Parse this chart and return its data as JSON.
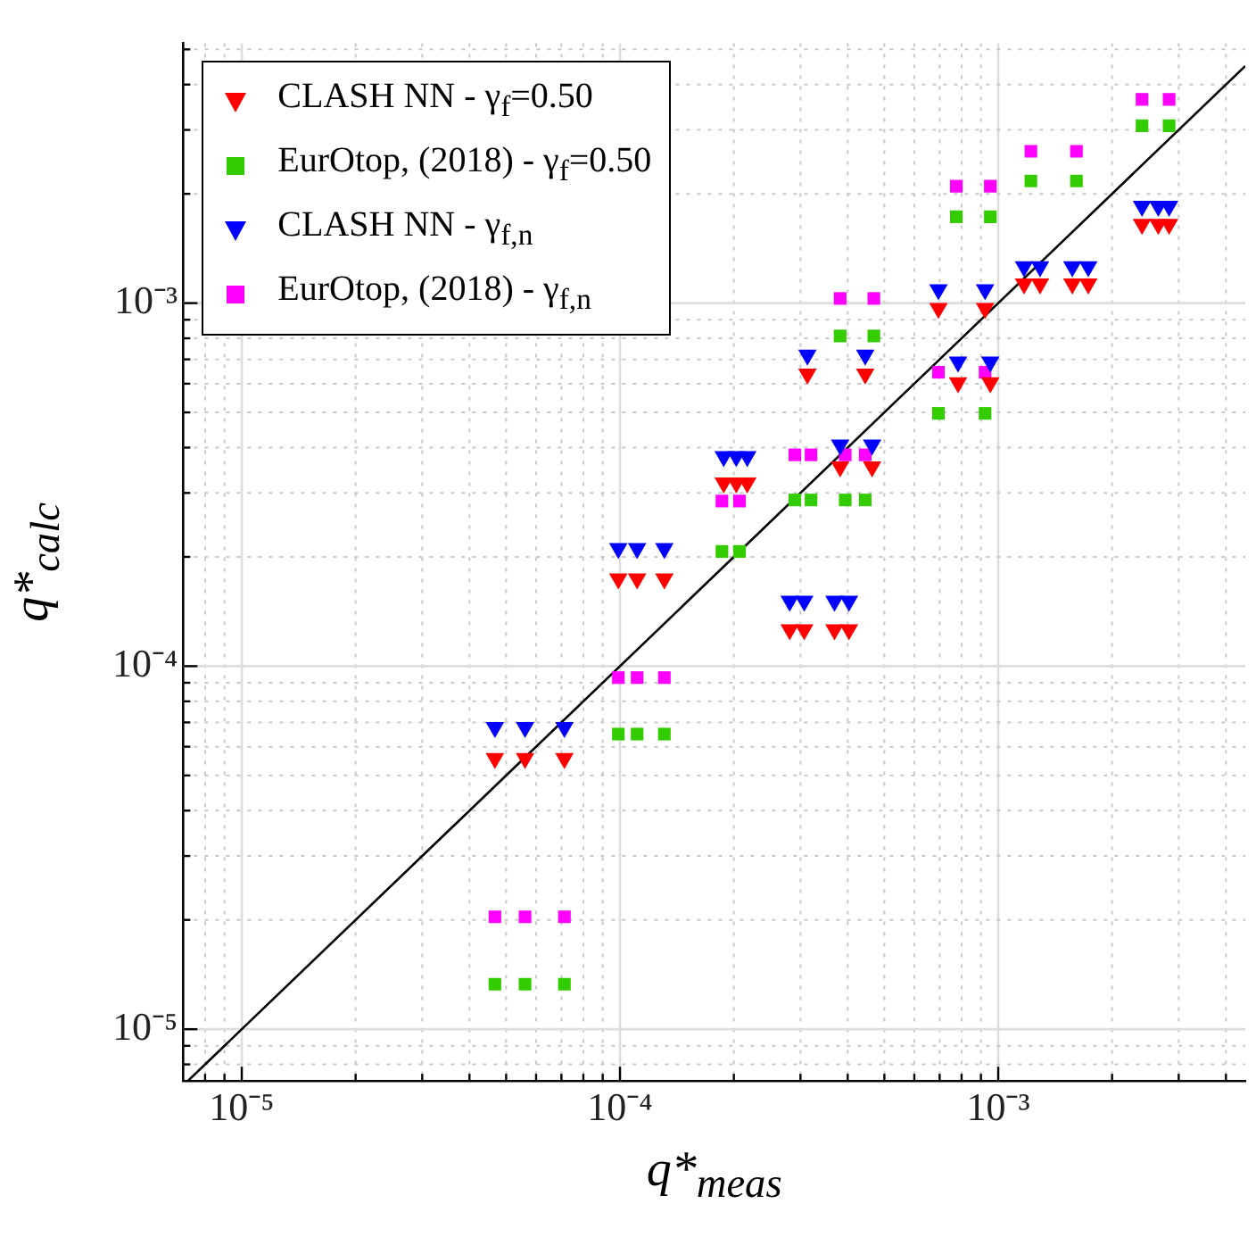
{
  "chart_data": {
    "type": "scatter",
    "xlabel": "q*$_{meas}$",
    "ylabel": "q*$_{calc}$",
    "log": "xy",
    "grid": true,
    "legend": "top left",
    "xlim": [
      7e-06,
      0.0045
    ],
    "ylim": [
      7.2e-06,
      0.0052
    ],
    "xticks": [
      {
        "value": 8e-06,
        "label": null
      },
      {
        "value": 9e-06,
        "label": null
      },
      {
        "value": 1e-05,
        "label": "10⁻⁵"
      },
      {
        "value": 2e-05,
        "label": null
      },
      {
        "value": 3e-05,
        "label": null
      },
      {
        "value": 4e-05,
        "label": null
      },
      {
        "value": 5e-05,
        "label": null
      },
      {
        "value": 6e-05,
        "label": null
      },
      {
        "value": 7e-05,
        "label": null
      },
      {
        "value": 8e-05,
        "label": null
      },
      {
        "value": 9e-05,
        "label": null
      },
      {
        "value": 0.0001,
        "label": "10⁻⁴"
      },
      {
        "value": 0.0002,
        "label": null
      },
      {
        "value": 0.0003,
        "label": null
      },
      {
        "value": 0.0004,
        "label": null
      },
      {
        "value": 0.0005,
        "label": null
      },
      {
        "value": 0.0006,
        "label": null
      },
      {
        "value": 0.0007,
        "label": null
      },
      {
        "value": 0.0008,
        "label": null
      },
      {
        "value": 0.0009,
        "label": null
      },
      {
        "value": 0.001,
        "label": "10⁻³"
      },
      {
        "value": 0.002,
        "label": null
      },
      {
        "value": 0.003,
        "label": null
      },
      {
        "value": 0.004,
        "label": null
      }
    ],
    "yticks": [
      {
        "value": 8e-06,
        "label": null
      },
      {
        "value": 9e-06,
        "label": null
      },
      {
        "value": 1e-05,
        "label": "10⁻⁵"
      },
      {
        "value": 2e-05,
        "label": null
      },
      {
        "value": 3e-05,
        "label": null
      },
      {
        "value": 4e-05,
        "label": null
      },
      {
        "value": 5e-05,
        "label": null
      },
      {
        "value": 6e-05,
        "label": null
      },
      {
        "value": 7e-05,
        "label": null
      },
      {
        "value": 8e-05,
        "label": null
      },
      {
        "value": 9e-05,
        "label": null
      },
      {
        "value": 0.0001,
        "label": "10⁻⁴"
      },
      {
        "value": 0.0002,
        "label": null
      },
      {
        "value": 0.0003,
        "label": null
      },
      {
        "value": 0.0004,
        "label": null
      },
      {
        "value": 0.0005,
        "label": null
      },
      {
        "value": 0.0006,
        "label": null
      },
      {
        "value": 0.0007,
        "label": null
      },
      {
        "value": 0.0008,
        "label": null
      },
      {
        "value": 0.0009,
        "label": null
      },
      {
        "value": 0.001,
        "label": "10⁻³"
      },
      {
        "value": 0.002,
        "label": null
      },
      {
        "value": 0.003,
        "label": null
      },
      {
        "value": 0.004,
        "label": null
      },
      {
        "value": 0.005,
        "label": null
      }
    ],
    "series": [
      {
        "name": "CLASH NN - γ$_{f}$=0.50",
        "color": "#ff0000",
        "marker": "triangle",
        "x": [
          4.67e-05,
          5.61e-05,
          7.13e-05,
          9.9e-05,
          0.000111,
          0.000131,
          0.000188,
          0.000203,
          0.000217,
          0.000281,
          0.000307,
          0.000369,
          0.000403,
          0.000382,
          0.000464,
          0.000313,
          0.000445,
          0.000783,
          0.000953,
          0.000695,
          0.000923,
          0.00117,
          0.00129,
          0.00157,
          0.00173,
          0.0024,
          0.00265,
          0.00283
        ],
        "values": [
          5.57e-05,
          5.57e-05,
          5.57e-05,
          0.000174,
          0.000174,
          0.000174,
          0.00032,
          0.00032,
          0.00032,
          0.000126,
          0.000126,
          0.000126,
          0.000126,
          0.000354,
          0.000354,
          0.000638,
          0.000638,
          0.000604,
          0.000604,
          0.000968,
          0.000968,
          0.00113,
          0.00113,
          0.00113,
          0.00113,
          0.00165,
          0.00165,
          0.00165
        ]
      },
      {
        "name": "EurOtop, (2018) - γ$_{f}$=0.50",
        "color": "#33cc00",
        "marker": "square",
        "x": [
          4.67e-05,
          5.61e-05,
          7.13e-05,
          9.9e-05,
          0.000111,
          0.000131,
          0.000186,
          0.000207,
          0.00029,
          0.00032,
          0.000394,
          0.000445,
          0.000382,
          0.000469,
          0.000695,
          0.000923,
          0.000775,
          0.000953,
          0.00122,
          0.00161,
          0.0024,
          0.00283
        ],
        "values": [
          1.33e-05,
          1.33e-05,
          1.33e-05,
          6.5e-05,
          6.5e-05,
          6.5e-05,
          0.000207,
          0.000207,
          0.000287,
          0.000287,
          0.000287,
          0.000287,
          0.000812,
          0.000812,
          0.000497,
          0.000497,
          0.00173,
          0.00173,
          0.00217,
          0.00217,
          0.00308,
          0.00308
        ]
      },
      {
        "name": "CLASH NN - γ$_{f,n}$",
        "color": "#0000ff",
        "marker": "triangle",
        "x": [
          4.67e-05,
          5.61e-05,
          7.13e-05,
          9.9e-05,
          0.000111,
          0.000131,
          0.000188,
          0.000203,
          0.000217,
          0.000281,
          0.000307,
          0.000369,
          0.000403,
          0.000382,
          0.000464,
          0.000313,
          0.000445,
          0.000783,
          0.000953,
          0.000695,
          0.000923,
          0.00117,
          0.00129,
          0.00157,
          0.00173,
          0.0024,
          0.00265,
          0.00283
        ],
        "values": [
          6.78e-05,
          6.78e-05,
          6.78e-05,
          0.000211,
          0.000211,
          0.000211,
          0.000378,
          0.000378,
          0.000378,
          0.000151,
          0.000151,
          0.000151,
          0.000151,
          0.000407,
          0.000407,
          0.00072,
          0.00072,
          0.000689,
          0.000689,
          0.00109,
          0.00109,
          0.00126,
          0.00126,
          0.00126,
          0.00126,
          0.00185,
          0.00185,
          0.00185
        ]
      },
      {
        "name": "EurOtop, (2018) - γ$_{f,n}$",
        "color": "#ff00ff",
        "marker": "square",
        "x": [
          4.67e-05,
          5.61e-05,
          7.13e-05,
          9.9e-05,
          0.000111,
          0.000131,
          0.000186,
          0.000207,
          0.00029,
          0.00032,
          0.000394,
          0.000445,
          0.000382,
          0.000469,
          0.000695,
          0.000923,
          0.000775,
          0.000953,
          0.00122,
          0.00161,
          0.0024,
          0.00283
        ],
        "values": [
          2.04e-05,
          2.04e-05,
          2.04e-05,
          9.3e-05,
          9.3e-05,
          9.3e-05,
          0.000285,
          0.000285,
          0.000382,
          0.000382,
          0.000382,
          0.000382,
          0.00103,
          0.00103,
          0.000645,
          0.000645,
          0.0021,
          0.0021,
          0.00262,
          0.00262,
          0.00364,
          0.00364
        ]
      },
      {
        "type": "line",
        "color": "#000000",
        "x": [
          7.2e-06,
          0.0045
        ],
        "values": [
          7.2e-06,
          0.0045
        ]
      }
    ]
  }
}
